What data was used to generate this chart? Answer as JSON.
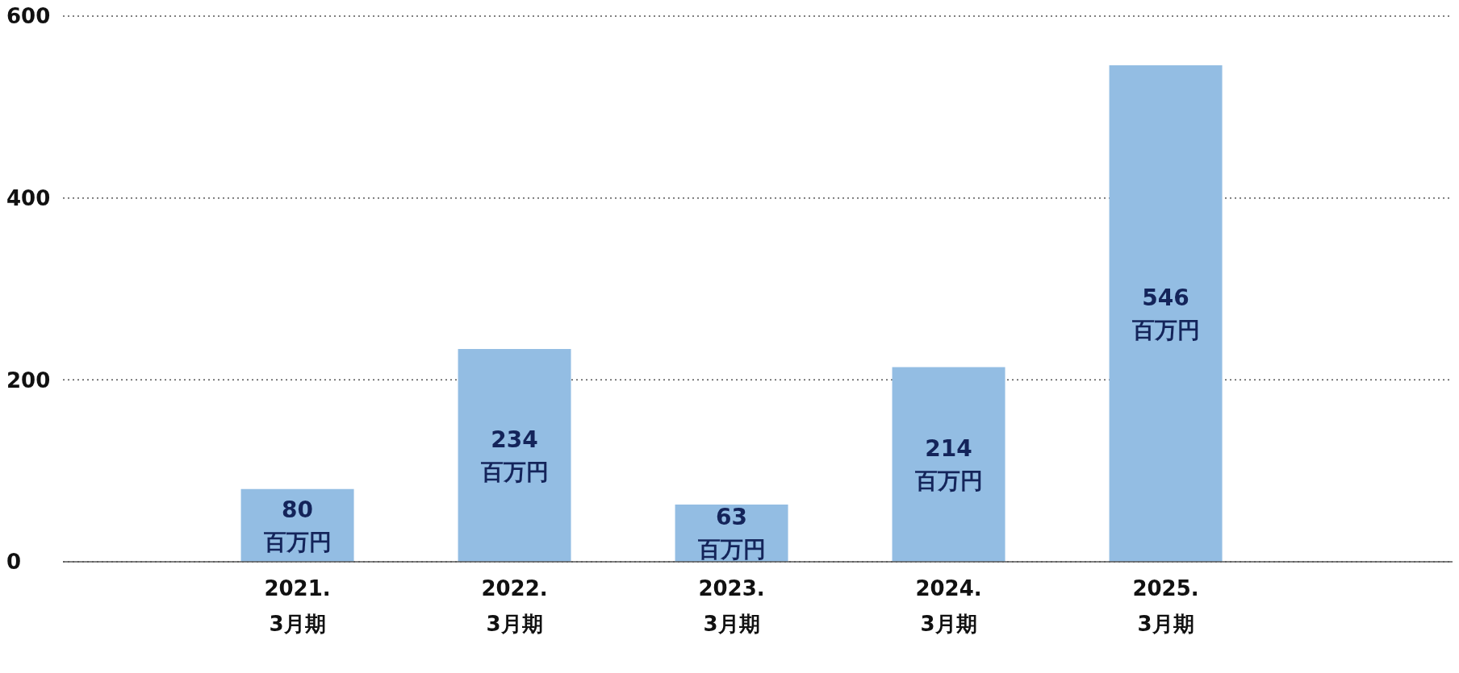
{
  "chart_data": {
    "type": "bar",
    "categories": [
      "2021.\n3月期",
      "2022.\n3月期",
      "2023.\n3月期",
      "2024.\n3月期",
      "2025.\n3月期"
    ],
    "values": [
      80,
      234,
      63,
      214,
      546
    ],
    "color": "#93bde3",
    "value_labels": [
      "80\n百万円",
      "234\n百万円",
      "63\n百万円",
      "214\n百万円",
      "546\n百万円"
    ],
    "ylim": [
      0,
      600
    ],
    "yticks": [
      0,
      200,
      400,
      600
    ],
    "grid": "y",
    "legend": false
  }
}
